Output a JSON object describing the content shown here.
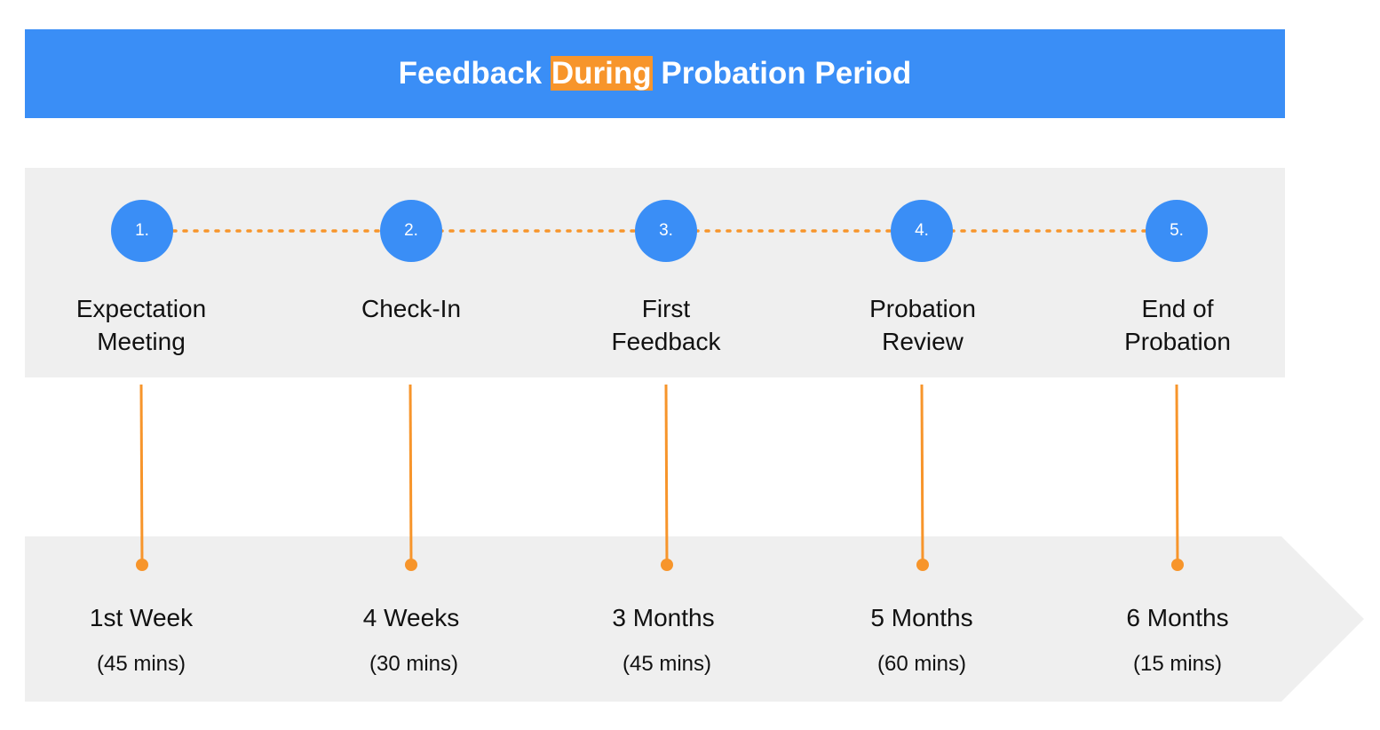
{
  "title": {
    "before": "Feedback ",
    "highlight": "During",
    "after": " Probation Period"
  },
  "colors": {
    "accent_blue": "#3a8ef6",
    "accent_orange": "#f7952b",
    "panel_gray": "#efefef"
  },
  "steps": [
    {
      "number": "1.",
      "label_line1": "Expectation",
      "label_line2": "Meeting",
      "time": "1st Week",
      "duration": "(45 mins)"
    },
    {
      "number": "2.",
      "label_line1": "Check-In",
      "label_line2": "",
      "time": "4 Weeks",
      "duration": "(30 mins)"
    },
    {
      "number": "3.",
      "label_line1": "First",
      "label_line2": "Feedback",
      "time": "3 Months",
      "duration": "(45 mins)"
    },
    {
      "number": "4.",
      "label_line1": "Probation",
      "label_line2": "Review",
      "time": "5 Months",
      "duration": "(60 mins)"
    },
    {
      "number": "5.",
      "label_line1": "End of",
      "label_line2": "Probation",
      "time": "6 Months",
      "duration": "(15 mins)"
    }
  ]
}
